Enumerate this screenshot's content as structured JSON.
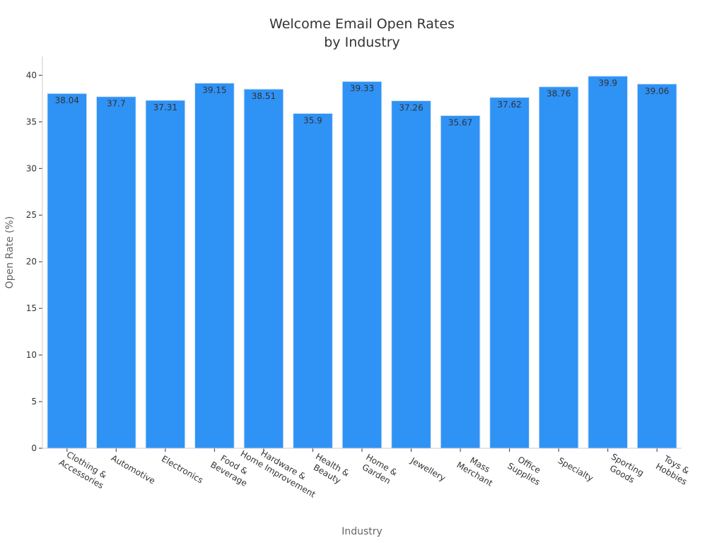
{
  "chart_data": {
    "type": "bar",
    "title": [
      "Welcome Email Open Rates",
      "by Industry"
    ],
    "x_label": "Industry",
    "y_label": "Open Rate (%)",
    "categories": [
      [
        "Clothing &",
        "Accessories"
      ],
      [
        "Automotive"
      ],
      [
        "Electronics"
      ],
      [
        "Food &",
        "Beverage"
      ],
      [
        "Hardware &",
        "Home Improvement"
      ],
      [
        "Health &",
        "Beauty"
      ],
      [
        "Home &",
        "Garden"
      ],
      [
        "Jewellery"
      ],
      [
        "Mass",
        "Merchant"
      ],
      [
        "Office",
        "Supplies"
      ],
      [
        "Specialty"
      ],
      [
        "Sporting",
        "Goods"
      ],
      [
        "Toys &",
        "Hobbies"
      ]
    ],
    "values": [
      38.04,
      37.7,
      37.31,
      39.15,
      38.51,
      35.9,
      39.33,
      37.26,
      35.67,
      37.62,
      38.76,
      39.9,
      39.06
    ],
    "color": "#2f92f5",
    "ylim": [
      0,
      42
    ],
    "yticks": [
      0,
      5,
      10,
      15,
      20,
      25,
      30,
      35,
      40
    ],
    "grid": false
  }
}
